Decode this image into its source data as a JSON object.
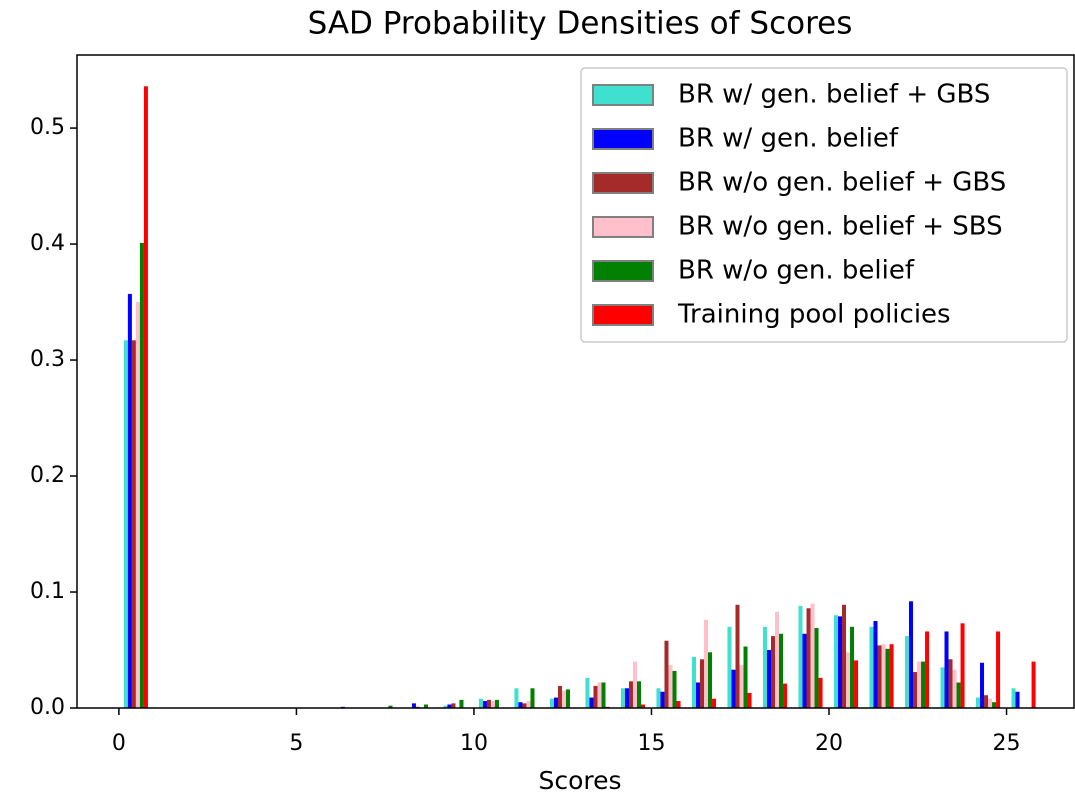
{
  "chart_data": {
    "type": "bar",
    "title": "SAD Probability Densities of Scores",
    "xlabel": "Scores",
    "x": [
      0,
      1,
      2,
      3,
      4,
      5,
      6,
      7,
      8,
      9,
      10,
      11,
      12,
      13,
      14,
      15,
      16,
      17,
      18,
      19,
      20,
      21,
      22,
      23,
      24,
      25
    ],
    "series": [
      {
        "name": "BR w/ gen. belief + GBS",
        "color": "#40e0d0",
        "values": [
          0.317,
          0,
          0,
          0,
          0,
          0,
          0,
          0,
          0,
          0.002,
          0.008,
          0.017,
          0.008,
          0.026,
          0.017,
          0.017,
          0.044,
          0.07,
          0.07,
          0.088,
          0.08,
          0.07,
          0.062,
          0.035,
          0.009,
          0.017
        ]
      },
      {
        "name": "BR w/ gen. belief",
        "color": "#0000ff",
        "values": [
          0.357,
          0,
          0,
          0,
          0,
          0,
          0.001,
          0,
          0.004,
          0.003,
          0.006,
          0.005,
          0.009,
          0.009,
          0.017,
          0.014,
          0.022,
          0.033,
          0.05,
          0.064,
          0.079,
          0.075,
          0.092,
          0.066,
          0.039,
          0.014
        ]
      },
      {
        "name": "BR w/o gen. belief + GBS",
        "color": "#a52a2a",
        "values": [
          0.317,
          0,
          0,
          0,
          0,
          0,
          0,
          0,
          0.001,
          0.004,
          0.007,
          0.004,
          0.019,
          0.019,
          0.023,
          0.058,
          0.042,
          0.089,
          0.062,
          0.086,
          0.089,
          0.054,
          0.031,
          0.042,
          0.011,
          0
        ]
      },
      {
        "name": "BR w/o gen. belief + SBS",
        "color": "#ffc0cb",
        "values": [
          0.35,
          0,
          0,
          0,
          0,
          0,
          0,
          0,
          0,
          0,
          0.006,
          0.006,
          0.015,
          0.022,
          0.04,
          0.037,
          0.076,
          0.037,
          0.083,
          0.09,
          0.048,
          0.055,
          0.04,
          0.033,
          0.008,
          0
        ]
      },
      {
        "name": "BR w/o gen. belief",
        "color": "#008000",
        "values": [
          0.401,
          0,
          0,
          0,
          0,
          0,
          0,
          0.002,
          0.003,
          0.007,
          0.007,
          0.017,
          0.016,
          0.022,
          0.023,
          0.032,
          0.048,
          0.053,
          0.064,
          0.069,
          0.07,
          0.051,
          0.04,
          0.022,
          0.005,
          0
        ]
      },
      {
        "name": "Training pool policies",
        "color": "#ff0000",
        "values": [
          0.536,
          0,
          0,
          0,
          0,
          0,
          0,
          0,
          0,
          0,
          0,
          0,
          0,
          0.001,
          0.003,
          0.006,
          0.008,
          0.013,
          0.021,
          0.026,
          0.041,
          0.055,
          0.066,
          0.073,
          0.066,
          0.04
        ]
      }
    ],
    "xlim": [
      -1.18,
      26.9
    ],
    "xticks": [
      0,
      5,
      10,
      15,
      20,
      25
    ],
    "ylim": [
      0,
      0.563
    ],
    "yticks": [
      {
        "value": 0,
        "label": "0.0"
      },
      0.1,
      0.2,
      0.3,
      0.4,
      0.5
    ],
    "legend": "upper right"
  }
}
